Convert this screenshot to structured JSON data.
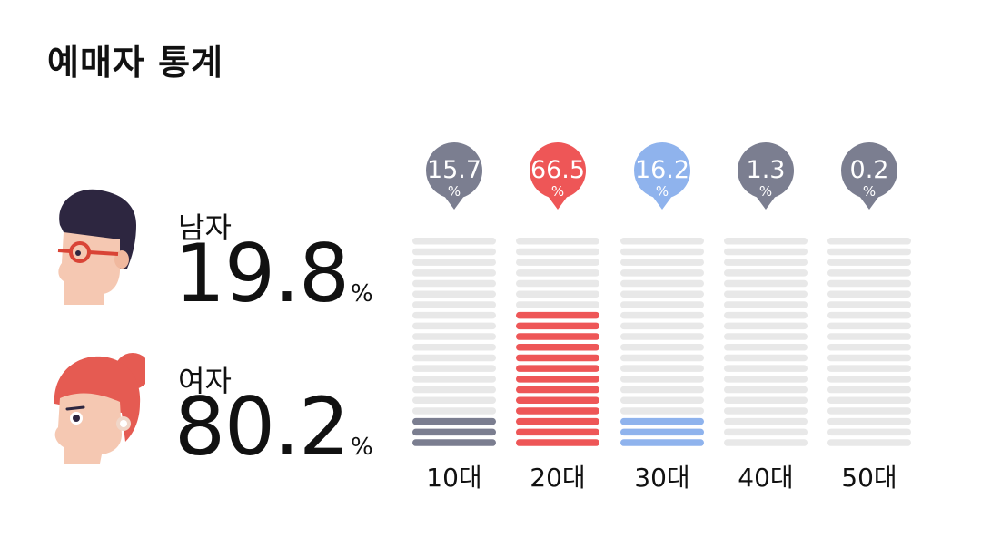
{
  "title": "예매자 통계",
  "gender": {
    "male": {
      "label": "남자",
      "value": "19.8",
      "unit": "%"
    },
    "female": {
      "label": "여자",
      "value": "80.2",
      "unit": "%"
    }
  },
  "chart_data": {
    "type": "bar",
    "categories": [
      "10대",
      "20대",
      "30대",
      "40대",
      "50대"
    ],
    "values": [
      15.7,
      66.5,
      16.2,
      1.3,
      0.2
    ],
    "value_unit": "%",
    "ylim": [
      0,
      100
    ],
    "grid": true,
    "colors": [
      "#7b7e90",
      "#ee5657",
      "#8fb3ed",
      "#7b7e90",
      "#7b7e90"
    ],
    "track_color": "#e8e8e8"
  },
  "icons": {
    "male": "male-avatar-icon",
    "female": "female-avatar-icon"
  }
}
